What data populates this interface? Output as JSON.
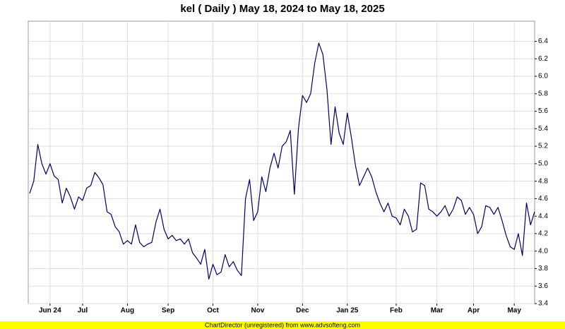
{
  "chart_data": {
    "type": "line",
    "title": "kel ( Daily ) May 18, 2024 to May 18, 2025",
    "footer": "ChartDirector (unregistered) from www.advsofteng.com",
    "color": "#000066",
    "grid": true,
    "categories": [
      null,
      null,
      null,
      null,
      null,
      "Jun 24",
      null,
      null,
      null,
      null,
      null,
      null,
      null,
      "Jul",
      null,
      null,
      null,
      null,
      null,
      null,
      null,
      null,
      null,
      null,
      "Aug",
      null,
      null,
      null,
      null,
      null,
      null,
      null,
      null,
      null,
      "Sep",
      null,
      null,
      null,
      null,
      null,
      null,
      null,
      null,
      null,
      null,
      "Oct",
      null,
      null,
      null,
      null,
      null,
      null,
      null,
      null,
      null,
      null,
      "Nov",
      null,
      null,
      null,
      null,
      null,
      null,
      null,
      null,
      null,
      null,
      "Dec",
      null,
      null,
      null,
      null,
      null,
      null,
      null,
      null,
      null,
      null,
      "Jan 25",
      null,
      null,
      null,
      null,
      null,
      null,
      null,
      null,
      null,
      null,
      null,
      "Feb",
      null,
      null,
      null,
      null,
      null,
      null,
      null,
      null,
      null,
      "Mar",
      null,
      null,
      null,
      null,
      null,
      null,
      null,
      null,
      "Apr",
      null,
      null,
      null,
      null,
      null,
      null,
      null,
      null,
      null,
      "May",
      null,
      null,
      null,
      null,
      null
    ],
    "values": [
      4.66,
      4.8,
      5.22,
      5.0,
      4.88,
      5.0,
      4.86,
      4.82,
      4.55,
      4.72,
      4.62,
      4.48,
      4.62,
      4.58,
      4.72,
      4.75,
      4.9,
      4.84,
      4.76,
      4.45,
      4.42,
      4.28,
      4.22,
      4.08,
      4.12,
      4.08,
      4.3,
      4.1,
      4.05,
      4.08,
      4.1,
      4.33,
      4.48,
      4.25,
      4.14,
      4.18,
      4.12,
      4.14,
      4.08,
      4.14,
      3.98,
      3.92,
      3.85,
      4.02,
      3.68,
      3.85,
      3.73,
      3.76,
      3.96,
      3.82,
      3.88,
      3.78,
      3.72,
      4.6,
      4.82,
      4.35,
      4.45,
      4.85,
      4.68,
      4.95,
      5.12,
      4.95,
      5.2,
      5.25,
      5.38,
      4.65,
      5.4,
      5.78,
      5.7,
      5.8,
      6.15,
      6.38,
      6.25,
      5.85,
      5.22,
      5.65,
      5.35,
      5.22,
      5.58,
      5.3,
      4.98,
      4.75,
      4.85,
      4.95,
      4.85,
      4.68,
      4.55,
      4.45,
      4.55,
      4.4,
      4.38,
      4.3,
      4.48,
      4.4,
      4.22,
      4.25,
      4.78,
      4.75,
      4.48,
      4.45,
      4.4,
      4.45,
      4.52,
      4.4,
      4.48,
      4.62,
      4.58,
      4.42,
      4.5,
      4.42,
      4.2,
      4.28,
      4.52,
      4.5,
      4.42,
      4.5,
      4.35,
      4.18,
      4.05,
      4.02,
      4.2,
      3.95,
      4.55,
      4.3,
      4.45
    ],
    "ylim": [
      3.4,
      6.63
    ],
    "yticks": [
      3.4,
      3.6,
      3.8,
      {
        "value": 4,
        "label": "4.0"
      },
      4.2,
      4.4,
      4.6,
      4.8,
      {
        "value": 5,
        "label": "5.0"
      },
      5.2,
      5.4,
      5.6,
      5.8,
      {
        "value": 6,
        "label": "6.0"
      },
      6.2,
      6.4
    ]
  }
}
